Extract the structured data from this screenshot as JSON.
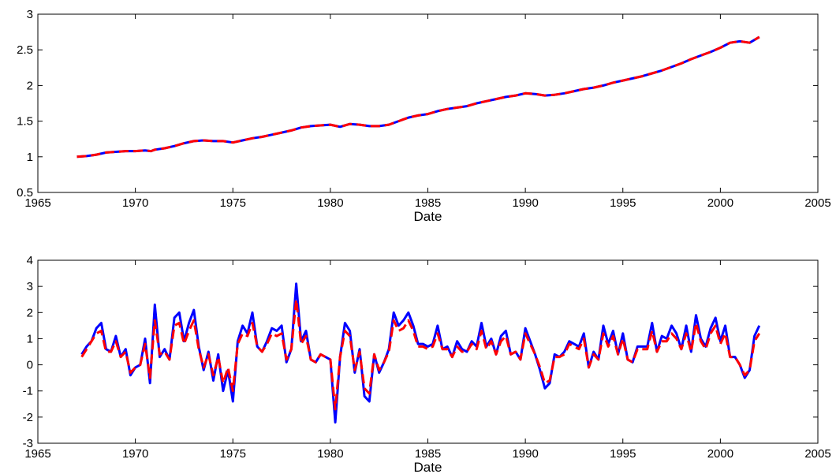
{
  "chart_data": [
    {
      "type": "line",
      "title": "",
      "xlabel": "Date",
      "ylabel": "",
      "xlim": [
        1965,
        2005
      ],
      "ylim": [
        0.5,
        3
      ],
      "xticks": [
        1965,
        1970,
        1975,
        1980,
        1985,
        1990,
        1995,
        2000,
        2005
      ],
      "yticks": [
        0.5,
        1,
        1.5,
        2,
        2.5,
        3
      ],
      "grid": false,
      "series": [
        {
          "color": "#0000ff",
          "style": "solid",
          "x": [
            1967.0,
            1967.5,
            1968.0,
            1968.5,
            1969.0,
            1969.5,
            1970.0,
            1970.5,
            1970.8,
            1971.0,
            1971.5,
            1972.0,
            1972.5,
            1973.0,
            1973.5,
            1974.0,
            1974.5,
            1975.0,
            1975.5,
            1976.0,
            1976.5,
            1977.0,
            1977.5,
            1978.0,
            1978.5,
            1979.0,
            1979.5,
            1980.0,
            1980.5,
            1981.0,
            1981.5,
            1982.0,
            1982.5,
            1983.0,
            1983.5,
            1984.0,
            1984.5,
            1985.0,
            1985.5,
            1986.0,
            1986.5,
            1987.0,
            1987.5,
            1988.0,
            1988.5,
            1989.0,
            1989.5,
            1990.0,
            1990.5,
            1991.0,
            1991.5,
            1992.0,
            1992.5,
            1993.0,
            1993.5,
            1994.0,
            1994.5,
            1995.0,
            1995.5,
            1996.0,
            1996.5,
            1997.0,
            1997.5,
            1998.0,
            1998.5,
            1999.0,
            1999.5,
            2000.0,
            2000.5,
            2001.0,
            2001.5,
            2002.0
          ],
          "values": [
            1.0,
            1.01,
            1.03,
            1.06,
            1.07,
            1.08,
            1.08,
            1.09,
            1.08,
            1.1,
            1.12,
            1.15,
            1.19,
            1.22,
            1.23,
            1.22,
            1.22,
            1.2,
            1.23,
            1.26,
            1.28,
            1.31,
            1.34,
            1.37,
            1.41,
            1.43,
            1.44,
            1.45,
            1.42,
            1.46,
            1.45,
            1.43,
            1.43,
            1.45,
            1.5,
            1.55,
            1.58,
            1.6,
            1.64,
            1.67,
            1.69,
            1.71,
            1.75,
            1.78,
            1.81,
            1.84,
            1.86,
            1.89,
            1.88,
            1.86,
            1.87,
            1.89,
            1.92,
            1.95,
            1.97,
            2.0,
            2.04,
            2.07,
            2.1,
            2.13,
            2.17,
            2.21,
            2.26,
            2.31,
            2.37,
            2.42,
            2.47,
            2.53,
            2.6,
            2.62,
            2.6,
            2.68
          ]
        },
        {
          "color": "#ff0000",
          "style": "dashed",
          "x": [
            1967.0,
            1967.5,
            1968.0,
            1968.5,
            1969.0,
            1969.5,
            1970.0,
            1970.5,
            1970.8,
            1971.0,
            1971.5,
            1972.0,
            1972.5,
            1973.0,
            1973.5,
            1974.0,
            1974.5,
            1975.0,
            1975.5,
            1976.0,
            1976.5,
            1977.0,
            1977.5,
            1978.0,
            1978.5,
            1979.0,
            1979.5,
            1980.0,
            1980.5,
            1981.0,
            1981.5,
            1982.0,
            1982.5,
            1983.0,
            1983.5,
            1984.0,
            1984.5,
            1985.0,
            1985.5,
            1986.0,
            1986.5,
            1987.0,
            1987.5,
            1988.0,
            1988.5,
            1989.0,
            1989.5,
            1990.0,
            1990.5,
            1991.0,
            1991.5,
            1992.0,
            1992.5,
            1993.0,
            1993.5,
            1994.0,
            1994.5,
            1995.0,
            1995.5,
            1996.0,
            1996.5,
            1997.0,
            1997.5,
            1998.0,
            1998.5,
            1999.0,
            1999.5,
            2000.0,
            2000.5,
            2001.0,
            2001.5,
            2002.0
          ],
          "values": [
            1.0,
            1.01,
            1.03,
            1.06,
            1.07,
            1.08,
            1.08,
            1.09,
            1.08,
            1.1,
            1.12,
            1.15,
            1.19,
            1.22,
            1.23,
            1.22,
            1.22,
            1.2,
            1.23,
            1.26,
            1.28,
            1.31,
            1.34,
            1.37,
            1.41,
            1.43,
            1.44,
            1.45,
            1.42,
            1.46,
            1.45,
            1.43,
            1.43,
            1.45,
            1.5,
            1.55,
            1.58,
            1.6,
            1.64,
            1.67,
            1.69,
            1.71,
            1.75,
            1.78,
            1.81,
            1.84,
            1.86,
            1.89,
            1.88,
            1.86,
            1.87,
            1.89,
            1.92,
            1.95,
            1.97,
            2.0,
            2.04,
            2.07,
            2.1,
            2.13,
            2.17,
            2.21,
            2.26,
            2.31,
            2.37,
            2.42,
            2.47,
            2.53,
            2.6,
            2.62,
            2.6,
            2.68
          ]
        }
      ]
    },
    {
      "type": "line",
      "title": "",
      "xlabel": "Date",
      "ylabel": "",
      "xlim": [
        1965,
        2005
      ],
      "ylim": [
        -3,
        4
      ],
      "xticks": [
        1965,
        1970,
        1975,
        1980,
        1985,
        1990,
        1995,
        2000,
        2005
      ],
      "yticks": [
        -3,
        -2,
        -1,
        0,
        1,
        2,
        3,
        4
      ],
      "grid": false,
      "series": [
        {
          "color": "#0000ff",
          "style": "solid",
          "x": [
            1967.25,
            1967.5,
            1967.75,
            1968.0,
            1968.25,
            1968.5,
            1968.75,
            1969.0,
            1969.25,
            1969.5,
            1969.75,
            1970.0,
            1970.25,
            1970.5,
            1970.75,
            1971.0,
            1971.25,
            1971.5,
            1971.75,
            1972.0,
            1972.25,
            1972.5,
            1972.75,
            1973.0,
            1973.25,
            1973.5,
            1973.75,
            1974.0,
            1974.25,
            1974.5,
            1974.75,
            1975.0,
            1975.25,
            1975.5,
            1975.75,
            1976.0,
            1976.25,
            1976.5,
            1976.75,
            1977.0,
            1977.25,
            1977.5,
            1977.75,
            1978.0,
            1978.25,
            1978.5,
            1978.75,
            1979.0,
            1979.25,
            1979.5,
            1979.75,
            1980.0,
            1980.25,
            1980.5,
            1980.75,
            1981.0,
            1981.25,
            1981.5,
            1981.75,
            1982.0,
            1982.25,
            1982.5,
            1982.75,
            1983.0,
            1983.25,
            1983.5,
            1983.75,
            1984.0,
            1984.25,
            1984.5,
            1984.75,
            1985.0,
            1985.25,
            1985.5,
            1985.75,
            1986.0,
            1986.25,
            1986.5,
            1986.75,
            1987.0,
            1987.25,
            1987.5,
            1987.75,
            1988.0,
            1988.25,
            1988.5,
            1988.75,
            1989.0,
            1989.25,
            1989.5,
            1989.75,
            1990.0,
            1990.25,
            1990.5,
            1990.75,
            1991.0,
            1991.25,
            1991.5,
            1991.75,
            1992.0,
            1992.25,
            1992.5,
            1992.75,
            1993.0,
            1993.25,
            1993.5,
            1993.75,
            1994.0,
            1994.25,
            1994.5,
            1994.75,
            1995.0,
            1995.25,
            1995.5,
            1995.75,
            1996.0,
            1996.25,
            1996.5,
            1996.75,
            1997.0,
            1997.25,
            1997.5,
            1997.75,
            1998.0,
            1998.25,
            1998.5,
            1998.75,
            1999.0,
            1999.25,
            1999.5,
            1999.75,
            2000.0,
            2000.25,
            2000.5,
            2000.75,
            2001.0,
            2001.25,
            2001.5,
            2001.75,
            2002.0
          ],
          "values": [
            0.4,
            0.7,
            0.9,
            1.4,
            1.6,
            0.6,
            0.5,
            1.1,
            0.3,
            0.6,
            -0.4,
            -0.1,
            0.0,
            1.0,
            -0.7,
            2.3,
            0.3,
            0.6,
            0.2,
            1.8,
            2.0,
            0.9,
            1.6,
            2.1,
            0.7,
            -0.2,
            0.5,
            -0.6,
            0.4,
            -1.0,
            -0.2,
            -1.4,
            0.9,
            1.5,
            1.2,
            2.0,
            0.7,
            0.5,
            0.9,
            1.4,
            1.3,
            1.5,
            0.1,
            0.6,
            3.1,
            0.9,
            1.3,
            0.2,
            0.1,
            0.4,
            0.3,
            0.2,
            -2.2,
            0.3,
            1.6,
            1.3,
            -0.3,
            0.6,
            -1.2,
            -1.4,
            0.4,
            -0.3,
            0.1,
            0.6,
            2.0,
            1.5,
            1.7,
            2.0,
            1.5,
            0.8,
            0.8,
            0.7,
            0.8,
            1.5,
            0.6,
            0.7,
            0.3,
            0.9,
            0.6,
            0.5,
            0.9,
            0.7,
            1.6,
            0.7,
            1.0,
            0.4,
            1.1,
            1.3,
            0.4,
            0.5,
            0.2,
            1.4,
            0.9,
            0.4,
            -0.2,
            -0.9,
            -0.7,
            0.4,
            0.3,
            0.5,
            0.9,
            0.8,
            0.7,
            1.2,
            -0.1,
            0.5,
            0.2,
            1.5,
            0.8,
            1.3,
            0.4,
            1.2,
            0.2,
            0.1,
            0.7,
            0.7,
            0.7,
            1.6,
            0.5,
            1.1,
            1.0,
            1.5,
            1.2,
            0.6,
            1.5,
            0.5,
            1.9,
            1.0,
            0.7,
            1.4,
            1.8,
            0.9,
            1.5,
            0.3,
            0.3,
            0.0,
            -0.5,
            -0.2,
            1.1,
            1.5
          ]
        },
        {
          "color": "#ff0000",
          "style": "dashed",
          "x": [
            1967.25,
            1967.5,
            1967.75,
            1968.0,
            1968.25,
            1968.5,
            1968.75,
            1969.0,
            1969.25,
            1969.5,
            1969.75,
            1970.0,
            1970.25,
            1970.5,
            1970.75,
            1971.0,
            1971.25,
            1971.5,
            1971.75,
            1972.0,
            1972.25,
            1972.5,
            1972.75,
            1973.0,
            1973.25,
            1973.5,
            1973.75,
            1974.0,
            1974.25,
            1974.5,
            1974.75,
            1975.0,
            1975.25,
            1975.5,
            1975.75,
            1976.0,
            1976.25,
            1976.5,
            1976.75,
            1977.0,
            1977.25,
            1977.5,
            1977.75,
            1978.0,
            1978.25,
            1978.5,
            1978.75,
            1979.0,
            1979.25,
            1979.5,
            1979.75,
            1980.0,
            1980.25,
            1980.5,
            1980.75,
            1981.0,
            1981.25,
            1981.5,
            1981.75,
            1982.0,
            1982.25,
            1982.5,
            1982.75,
            1983.0,
            1983.25,
            1983.5,
            1983.75,
            1984.0,
            1984.25,
            1984.5,
            1984.75,
            1985.0,
            1985.25,
            1985.5,
            1985.75,
            1986.0,
            1986.25,
            1986.5,
            1986.75,
            1987.0,
            1987.25,
            1987.5,
            1987.75,
            1988.0,
            1988.25,
            1988.5,
            1988.75,
            1989.0,
            1989.25,
            1989.5,
            1989.75,
            1990.0,
            1990.25,
            1990.5,
            1990.75,
            1991.0,
            1991.25,
            1991.5,
            1991.75,
            1992.0,
            1992.25,
            1992.5,
            1992.75,
            1993.0,
            1993.25,
            1993.5,
            1993.75,
            1994.0,
            1994.25,
            1994.5,
            1994.75,
            1995.0,
            1995.25,
            1995.5,
            1995.75,
            1996.0,
            1996.25,
            1996.5,
            1996.75,
            1997.0,
            1997.25,
            1997.5,
            1997.75,
            1998.0,
            1998.25,
            1998.5,
            1998.75,
            1999.0,
            1999.25,
            1999.5,
            1999.75,
            2000.0,
            2000.25,
            2000.5,
            2000.75,
            2001.0,
            2001.25,
            2001.5,
            2001.75,
            2002.0
          ],
          "values": [
            0.3,
            0.6,
            0.9,
            1.2,
            1.3,
            0.5,
            0.5,
            0.9,
            0.3,
            0.5,
            -0.3,
            -0.1,
            0.0,
            0.8,
            -0.5,
            1.7,
            0.4,
            0.5,
            0.2,
            1.5,
            1.6,
            0.8,
            1.3,
            1.7,
            0.6,
            -0.1,
            0.4,
            -0.4,
            0.3,
            -0.7,
            -0.1,
            -1.0,
            0.8,
            1.2,
            1.1,
            1.6,
            0.7,
            0.5,
            0.8,
            1.2,
            1.1,
            1.2,
            0.2,
            0.6,
            2.5,
            0.8,
            1.1,
            0.2,
            0.1,
            0.4,
            0.3,
            0.2,
            -1.7,
            0.3,
            1.3,
            1.1,
            -0.2,
            0.5,
            -0.9,
            -1.1,
            0.4,
            -0.2,
            0.1,
            0.5,
            1.7,
            1.3,
            1.4,
            1.7,
            1.3,
            0.7,
            0.7,
            0.6,
            0.7,
            1.2,
            0.6,
            0.6,
            0.3,
            0.7,
            0.5,
            0.5,
            0.8,
            0.6,
            1.3,
            0.6,
            0.9,
            0.4,
            0.9,
            1.1,
            0.4,
            0.5,
            0.2,
            1.2,
            0.8,
            0.4,
            -0.1,
            -0.7,
            -0.6,
            0.3,
            0.3,
            0.4,
            0.8,
            0.7,
            0.6,
            1.0,
            -0.1,
            0.4,
            0.2,
            1.2,
            0.7,
            1.1,
            0.4,
            1.0,
            0.2,
            0.1,
            0.6,
            0.6,
            0.6,
            1.3,
            0.5,
            0.9,
            0.9,
            1.2,
            1.0,
            0.6,
            1.2,
            0.5,
            1.6,
            0.9,
            0.6,
            1.2,
            1.5,
            0.8,
            1.2,
            0.3,
            0.3,
            0.0,
            -0.4,
            -0.2,
            0.9,
            1.2
          ]
        }
      ]
    }
  ]
}
